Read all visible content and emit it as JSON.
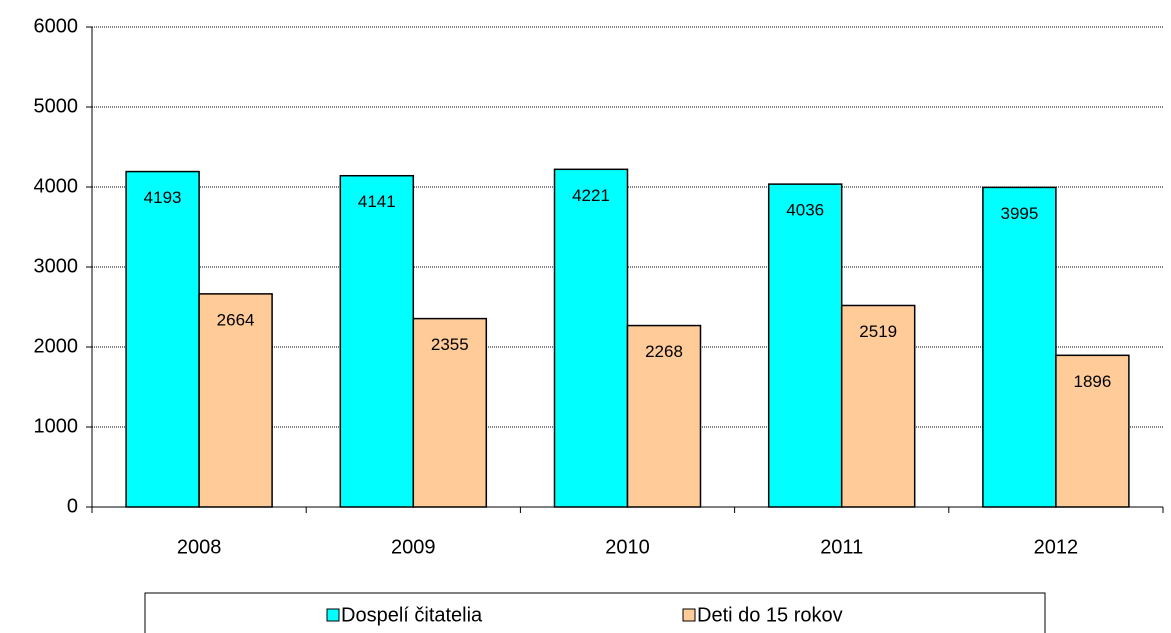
{
  "chart_data": {
    "type": "bar",
    "categories": [
      "2008",
      "2009",
      "2010",
      "2011",
      "2012"
    ],
    "series": [
      {
        "name": "Dospelí čitatelia",
        "color": "#00ffff",
        "values": [
          4193,
          4141,
          4221,
          4036,
          3995
        ]
      },
      {
        "name": "Deti do 15 rokov",
        "color": "#ffcc99",
        "values": [
          2664,
          2355,
          2268,
          2519,
          1896
        ]
      }
    ],
    "ylim": [
      0,
      6000
    ],
    "yticks": [
      0,
      1000,
      2000,
      3000,
      4000,
      5000,
      6000
    ],
    "grid": true
  }
}
